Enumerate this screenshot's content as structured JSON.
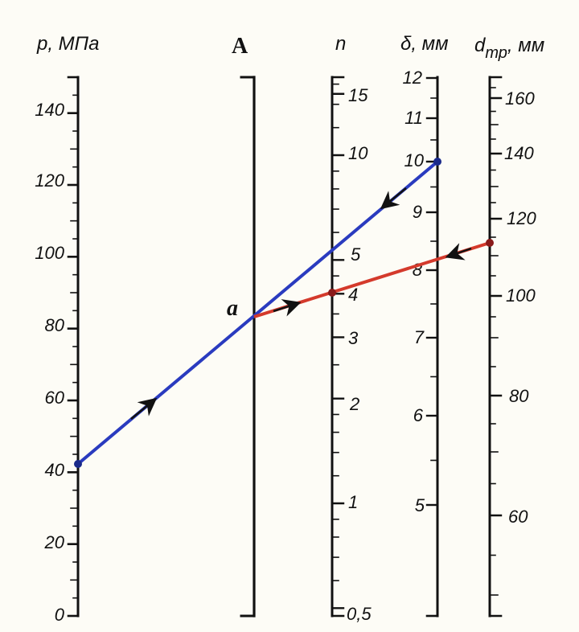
{
  "diagram": {
    "title": "",
    "colors": {
      "ink": "#111111",
      "blue_line": "#2a3bbf",
      "red_line": "#d43a2c",
      "paper": "#fdfcf6"
    },
    "scales": {
      "p": {
        "label": "p, МПа",
        "ticks": [
          "0",
          "20",
          "40",
          "60",
          "80",
          "100",
          "120",
          "140"
        ]
      },
      "A": {
        "label": "A"
      },
      "n": {
        "label": "n",
        "ticks": [
          "0,5",
          "1",
          "2",
          "3",
          "4",
          "5",
          "10",
          "15"
        ]
      },
      "delta": {
        "label": "δ, мм",
        "ticks": [
          "5",
          "6",
          "7",
          "8",
          "9",
          "10",
          "11",
          "12"
        ]
      },
      "dtr": {
        "label": "d",
        "subscript": "тр",
        "unit": ", мм",
        "ticks": [
          "60",
          "80",
          "100",
          "120",
          "140",
          "160"
        ]
      }
    },
    "point_label": "a",
    "solution": {
      "p_value": 40,
      "delta_value": 10,
      "dtr_value": 115,
      "n_value": 4
    }
  }
}
